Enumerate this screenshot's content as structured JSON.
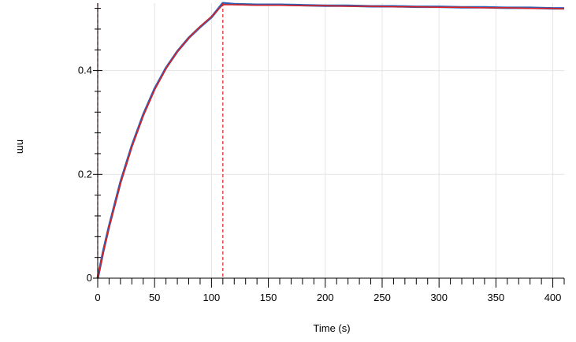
{
  "chart_data": {
    "type": "line",
    "xlabel": "Time (s)",
    "ylabel": "nm",
    "xlim": [
      0,
      410
    ],
    "ylim": [
      0,
      0.53
    ],
    "x_major_ticks": [
      0,
      50,
      100,
      150,
      200,
      250,
      300,
      350,
      400
    ],
    "x_tick_labels": [
      "0",
      "50",
      "100",
      "150",
      "200",
      "250",
      "300",
      "350",
      "400"
    ],
    "y_major_ticks": [
      0,
      0.2,
      0.4
    ],
    "y_tick_labels": [
      "0",
      "0.2",
      "0.4"
    ],
    "grid": true,
    "vertical_markers": [
      0,
      110
    ],
    "series": [
      {
        "role": "measured",
        "color": "#2f5fb3",
        "x": [
          0,
          5,
          10,
          20,
          30,
          40,
          50,
          60,
          70,
          80,
          90,
          100,
          110,
          120,
          140,
          160,
          180,
          200,
          220,
          240,
          260,
          280,
          300,
          320,
          340,
          360,
          380,
          400,
          410
        ],
        "y": [
          0.0,
          0.053,
          0.1,
          0.185,
          0.255,
          0.315,
          0.365,
          0.405,
          0.437,
          0.463,
          0.484,
          0.503,
          0.53,
          0.528,
          0.527,
          0.527,
          0.526,
          0.525,
          0.525,
          0.524,
          0.524,
          0.523,
          0.523,
          0.522,
          0.522,
          0.521,
          0.521,
          0.52,
          0.52
        ]
      },
      {
        "role": "fit",
        "color": "#e02020",
        "x": [
          0,
          5,
          10,
          20,
          30,
          40,
          50,
          60,
          70,
          80,
          90,
          100,
          110,
          120,
          140,
          160,
          180,
          200,
          220,
          240,
          260,
          280,
          300,
          320,
          340,
          360,
          380,
          400,
          410
        ],
        "y": [
          0.0,
          0.051,
          0.098,
          0.183,
          0.253,
          0.313,
          0.363,
          0.404,
          0.437,
          0.463,
          0.485,
          0.504,
          0.527,
          0.527,
          0.526,
          0.526,
          0.525,
          0.525,
          0.524,
          0.524,
          0.523,
          0.523,
          0.522,
          0.522,
          0.521,
          0.521,
          0.52,
          0.52,
          0.519
        ]
      }
    ]
  }
}
